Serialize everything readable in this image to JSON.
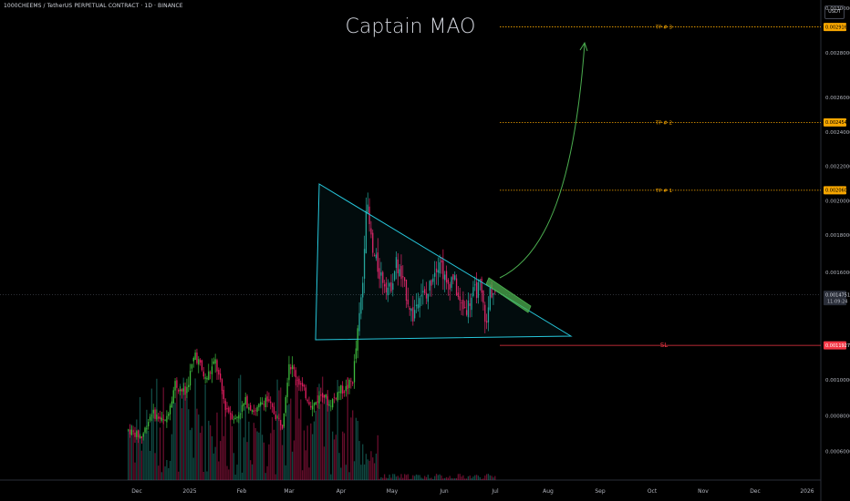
{
  "header": {
    "symbol": "1000CHEEMS / TetherUS PERPETUAL CONTRACT · 1D · BINANCE",
    "currency": "USDT"
  },
  "chart_data": {
    "type": "candlestick",
    "title": "Captain MAO",
    "x_ticks": [
      "Dec",
      "2025",
      "Feb",
      "Mar",
      "Apr",
      "May",
      "Jun",
      "Jul",
      "Aug",
      "Sep",
      "Oct",
      "Nov",
      "Dec",
      "2026"
    ],
    "y_ticks": [
      "0.0030000",
      "0.0028000",
      "0.0026000",
      "0.0024000",
      "0.0022000",
      "0.0020000",
      "0.0018000",
      "0.0016000",
      "0.0010000",
      "0.0008000",
      "0.0006000"
    ],
    "ylim": [
      0.0005,
      0.00305
    ],
    "price_tags": [
      {
        "label": "0.0029160",
        "price": 0.002916,
        "color": "#f7a600",
        "kind": "tp"
      },
      {
        "label": "0.0024549",
        "price": 0.0024549,
        "color": "#f7a600",
        "kind": "tp"
      },
      {
        "label": "0.0020604",
        "price": 0.0020604,
        "color": "#f7a600",
        "kind": "tp"
      },
      {
        "label": "0.0014751",
        "sublabel": "11:09:24",
        "price": 0.0014751,
        "color": "#2a2e39",
        "kind": "current"
      },
      {
        "label": "0.0011927",
        "price": 0.0011927,
        "color": "#f23645",
        "kind": "sl"
      }
    ],
    "levels": [
      {
        "name": "TP # 3",
        "price": 0.002916,
        "color": "#f7a600"
      },
      {
        "name": "TP # 2",
        "price": 0.0024549,
        "color": "#f7a600"
      },
      {
        "name": "TP # 1",
        "price": 0.0020604,
        "color": "#f7a600"
      },
      {
        "name": "SL",
        "price": 0.0011927,
        "color": "#f23645"
      }
    ],
    "pattern": "descending triangle breakout",
    "colors": {
      "up": "#26a69a",
      "up_bright": "#3fbf3f",
      "down": "#e91e63",
      "triangle": "#26c6da",
      "target": "#4caf50"
    }
  }
}
